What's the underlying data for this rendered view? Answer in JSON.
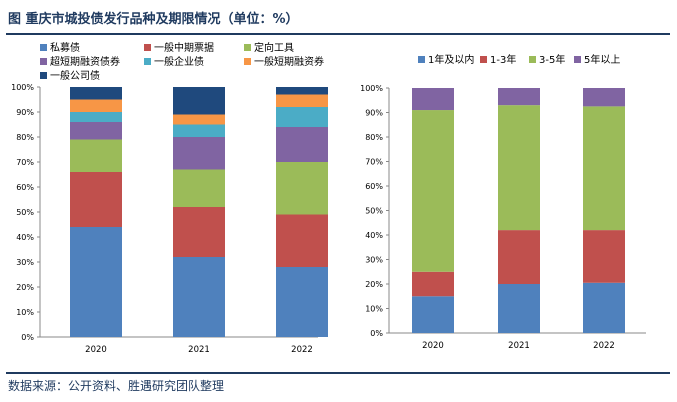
{
  "header": {
    "title": "图  重庆市城投债发行品种及期限情况（单位：%）"
  },
  "footer": {
    "source": "数据来源：公开资料、胜遇研究团队整理"
  },
  "chart_data": [
    {
      "type": "bar",
      "stacked": true,
      "categories": [
        "2020",
        "2021",
        "2022"
      ],
      "series": [
        {
          "name": "私募债",
          "color": "#4f81bd",
          "values": [
            44,
            32,
            28
          ]
        },
        {
          "name": "一般中期票据",
          "color": "#c0504d",
          "values": [
            22,
            20,
            21
          ]
        },
        {
          "name": "定向工具",
          "color": "#9bbb59",
          "values": [
            13,
            15,
            21
          ]
        },
        {
          "name": "超短期融资债券",
          "color": "#8064a2",
          "values": [
            7,
            13,
            14
          ]
        },
        {
          "name": "一般企业债",
          "color": "#4bacc6",
          "values": [
            4,
            5,
            8
          ]
        },
        {
          "name": "一般短期融资券",
          "color": "#f79646",
          "values": [
            5,
            4,
            5
          ]
        },
        {
          "name": "一般公司债",
          "color": "#1f497d",
          "values": [
            5,
            11,
            3
          ]
        }
      ],
      "yticks": [
        "0%",
        "10%",
        "20%",
        "30%",
        "40%",
        "50%",
        "60%",
        "70%",
        "80%",
        "90%",
        "100%"
      ],
      "ylim": [
        0,
        100
      ],
      "legend": "top",
      "grid": false
    },
    {
      "type": "bar",
      "stacked": true,
      "categories": [
        "2020",
        "2021",
        "2022"
      ],
      "series": [
        {
          "name": "1年及以内",
          "color": "#4f81bd",
          "values": [
            15,
            20,
            20.5
          ]
        },
        {
          "name": "1-3年",
          "color": "#c0504d",
          "values": [
            10,
            22,
            21.5
          ]
        },
        {
          "name": "3-5年",
          "color": "#9bbb59",
          "values": [
            66,
            51,
            50.5
          ]
        },
        {
          "name": "5年以上",
          "color": "#8064a2",
          "values": [
            9,
            7,
            7.5
          ]
        }
      ],
      "yticks": [
        "0%",
        "10%",
        "20%",
        "30%",
        "40%",
        "50%",
        "60%",
        "70%",
        "80%",
        "90%",
        "100%"
      ],
      "ylim": [
        0,
        100
      ],
      "legend": "top",
      "grid": false
    }
  ]
}
